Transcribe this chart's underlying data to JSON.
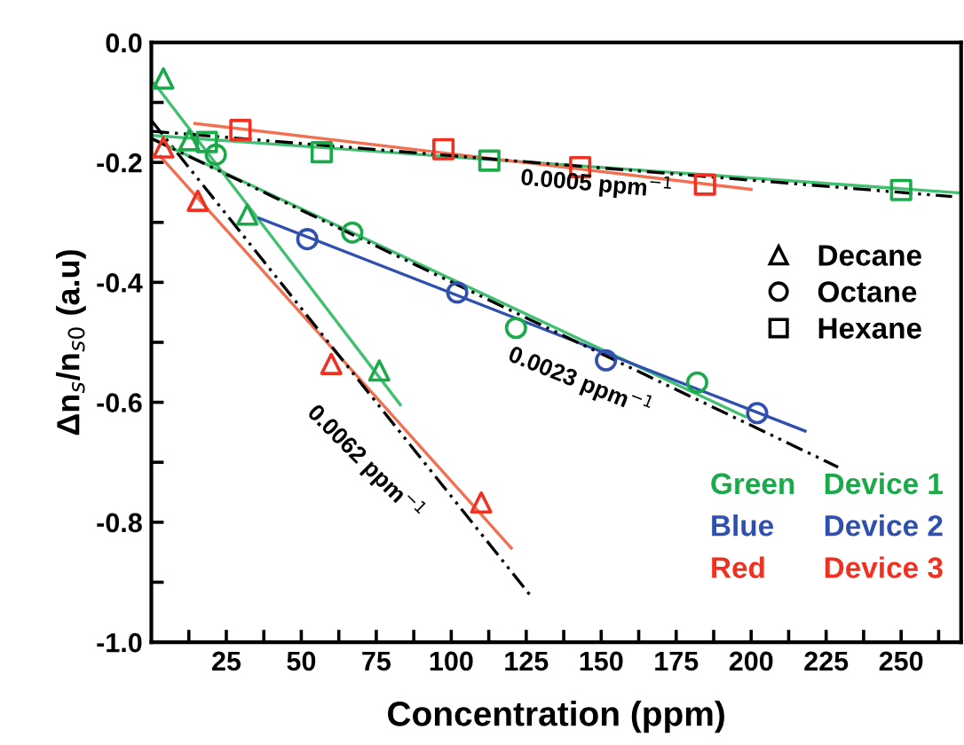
{
  "chart_data": {
    "type": "scatter",
    "xlabel": "Concentration (ppm)",
    "ylabel": "Δn$_{s}$/n$_{s0}$ (a.u)",
    "xlim": [
      0,
      270
    ],
    "ylim": [
      -1.0,
      0.0
    ],
    "xticks": [
      {
        "value": 12.5,
        "label": null
      },
      25,
      {
        "value": 37.5,
        "label": null
      },
      50,
      {
        "value": 62.5,
        "label": null
      },
      75,
      {
        "value": 87.5,
        "label": null
      },
      100,
      {
        "value": 112.5,
        "label": null
      },
      125,
      {
        "value": 137.5,
        "label": null
      },
      150,
      {
        "value": 162.5,
        "label": null
      },
      175,
      {
        "value": 187.5,
        "label": null
      },
      200,
      {
        "value": 212.5,
        "label": null
      },
      225,
      {
        "value": 237.5,
        "label": null
      },
      250,
      {
        "value": 262.5,
        "label": null
      }
    ],
    "yticks": [
      {
        "value": -1.0,
        "label": "-1.0"
      },
      {
        "value": -0.9,
        "label": null
      },
      {
        "value": -0.8,
        "label": "-0.8"
      },
      {
        "value": -0.7,
        "label": null
      },
      {
        "value": -0.6,
        "label": "-0.6"
      },
      {
        "value": -0.5,
        "label": null
      },
      {
        "value": -0.4,
        "label": "-0.4"
      },
      {
        "value": -0.3,
        "label": null
      },
      {
        "value": -0.2,
        "label": "-0.2"
      },
      {
        "value": -0.1,
        "label": null
      },
      {
        "value": 0.0,
        "label": "0.0"
      }
    ],
    "grid": false,
    "series": [
      {
        "type": "line",
        "color": "#40c070",
        "marker": "none",
        "line_style": "solid",
        "x": [
          1,
          83
        ],
        "values": [
          -0.068,
          -0.604
        ]
      },
      {
        "type": "line",
        "color": "#f07050",
        "marker": "none",
        "line_style": "solid",
        "x": [
          3,
          120
        ],
        "values": [
          -0.19,
          -0.843
        ]
      },
      {
        "type": "line",
        "color": "#000000",
        "marker": "none",
        "line_style": "dashdot",
        "x": [
          0,
          127
        ],
        "values": [
          -0.13,
          -0.926
        ]
      },
      {
        "type": "line",
        "color": "#40c070",
        "marker": "none",
        "line_style": "solid",
        "x": [
          0,
          198
        ],
        "values": [
          -0.16,
          -0.624
        ]
      },
      {
        "type": "line",
        "color": "#3050b0",
        "marker": "none",
        "line_style": "solid",
        "x": [
          36,
          218
        ],
        "values": [
          -0.293,
          -0.648
        ]
      },
      {
        "type": "line",
        "color": "#000000",
        "marker": "none",
        "line_style": "dashdot",
        "x": [
          0,
          229
        ],
        "values": [
          -0.16,
          -0.708
        ]
      },
      {
        "type": "line",
        "color": "#40c070",
        "marker": "none",
        "line_style": "solid",
        "x": [
          0,
          270
        ],
        "values": [
          -0.155,
          -0.251
        ]
      },
      {
        "type": "line",
        "color": "#f07050",
        "marker": "none",
        "line_style": "solid",
        "x": [
          14.5,
          200
        ],
        "values": [
          -0.135,
          -0.245
        ]
      },
      {
        "type": "line",
        "color": "#000000",
        "marker": "none",
        "line_style": "dashdot",
        "x": [
          0,
          267
        ],
        "values": [
          -0.148,
          -0.257
        ]
      },
      {
        "color": "#1aaa4a",
        "marker": "triangle",
        "x": [
          4,
          12.6,
          32,
          76
        ],
        "values": [
          -0.06,
          -0.163,
          -0.287,
          -0.547
        ]
      },
      {
        "color": "#3050b0",
        "marker": "circle",
        "x": [
          52,
          102,
          151.6,
          202
        ],
        "values": [
          -0.328,
          -0.417,
          -0.53,
          -0.618
        ]
      },
      {
        "color": "#f03020",
        "marker": "triangle",
        "x": [
          4,
          15.5,
          60,
          110
        ],
        "values": [
          -0.175,
          -0.264,
          -0.536,
          -0.767
        ]
      },
      {
        "color": "#1aaa4a",
        "marker": "circle",
        "x": [
          21.5,
          67,
          121.6,
          182
        ],
        "values": [
          -0.187,
          -0.317,
          -0.476,
          -0.567
        ]
      },
      {
        "color": "#1aaa4a",
        "marker": "square",
        "x": [
          18.5,
          56.8,
          112.7,
          250
        ],
        "values": [
          -0.166,
          -0.183,
          -0.197,
          -0.246
        ]
      },
      {
        "color": "#f03020",
        "marker": "square",
        "x": [
          29.7,
          97.4,
          143,
          184.6
        ],
        "values": [
          -0.146,
          -0.178,
          -0.208,
          -0.237
        ]
      }
    ],
    "annotations": [
      "0.0005 ppm$^{−1}$",
      "0.0023 ppm$^{−1}$",
      "0.0062 ppm$^{−1}$",
      "Decane",
      "Octane",
      "Hexane",
      "Green",
      "Device 1",
      "Blue",
      "Device 2",
      "Red",
      "Device 3"
    ]
  }
}
